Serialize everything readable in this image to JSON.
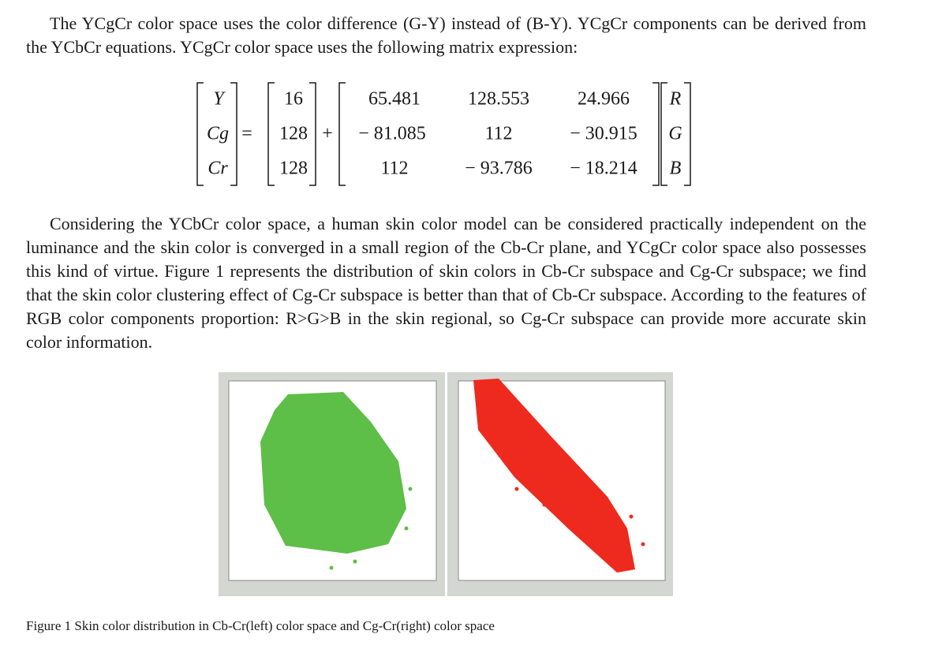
{
  "paragraphs": [
    "The YCgCr color space uses the color difference (G-Y) instead of (B-Y). YCgCr components can be derived from the YCbCr equations. YCgCr color space uses the following matrix expression:",
    "Considering the YCbCr color space, a human skin color model can be considered practically independent on the luminance and the skin color is converged in a small region of the Cb-Cr plane, and YCgCr color space also possesses this kind of virtue. Figure 1 represents the distribution of skin colors in Cb-Cr subspace and Cg-Cr subspace; we find that the skin color clustering effect of Cg-Cr subspace is better than that of Cb-Cr subspace. According to the features of RGB color components proportion: R>G>B in the skin regional, so Cg-Cr subspace can provide more accurate skin color information."
  ],
  "equation": {
    "lhs": [
      "Y",
      "Cg",
      "Cr"
    ],
    "equals": "=",
    "offset": [
      "16",
      "128",
      "128"
    ],
    "plus": "+",
    "matrix": [
      [
        "65.481",
        "128.553",
        "24.966"
      ],
      [
        "− 81.085",
        "112",
        "− 30.915"
      ],
      [
        "112",
        "− 93.786",
        "− 18.214"
      ]
    ],
    "rhs": [
      "R",
      "G",
      "B"
    ]
  },
  "figure": {
    "caption": "Figure 1 Skin color distribution in Cb-Cr(left) color space and Cg-Cr(right) color space"
  }
}
